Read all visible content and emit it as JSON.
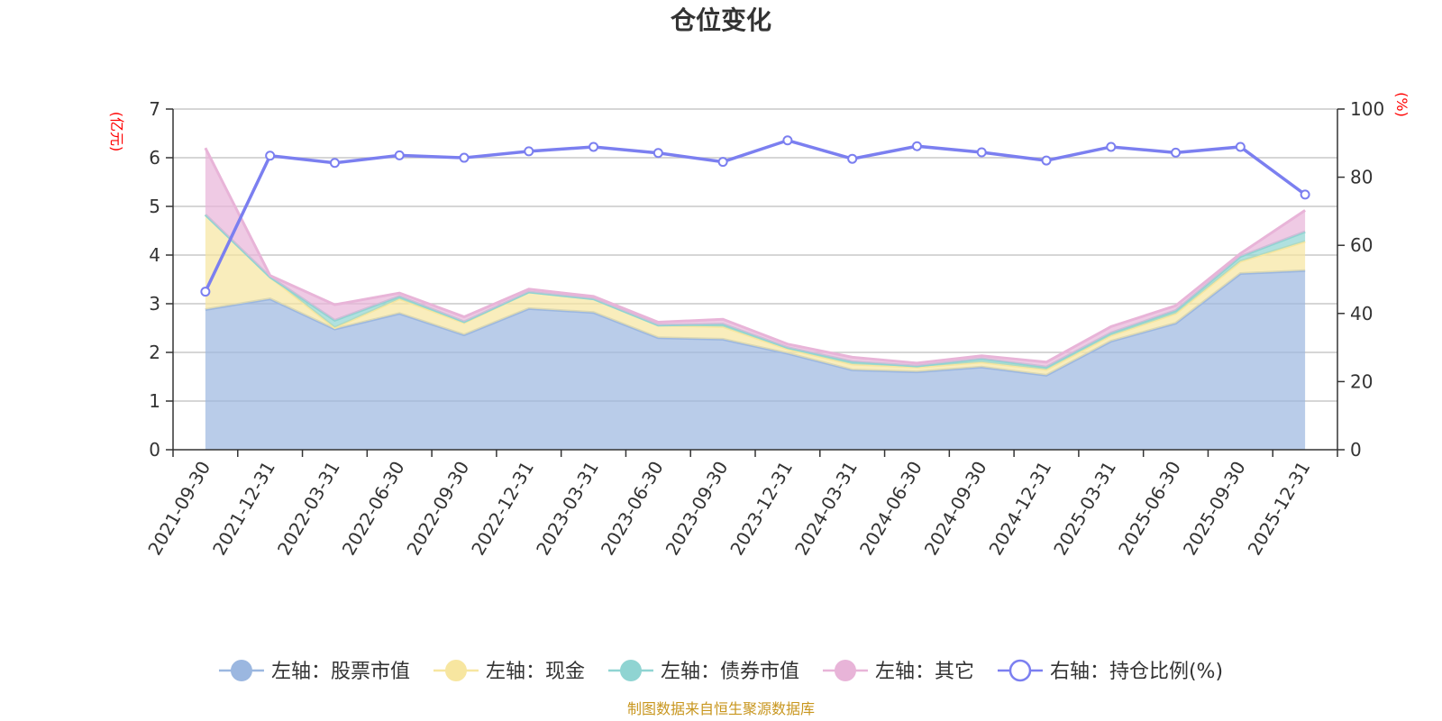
{
  "chart_data": {
    "type": "area",
    "title": "仓位变化",
    "left_axis_unit": "(亿元)",
    "right_axis_unit": "(%)",
    "left_ylim": [
      0,
      7
    ],
    "left_ticks": [
      "0",
      "1",
      "2",
      "3",
      "4",
      "5",
      "6",
      "7"
    ],
    "right_ylim": [
      0,
      100
    ],
    "right_ticks": [
      "0",
      "20",
      "40",
      "60",
      "80",
      "100"
    ],
    "categories": [
      "2021-09-30",
      "2021-12-31",
      "2022-03-31",
      "2022-06-30",
      "2022-09-30",
      "2022-12-31",
      "2023-03-31",
      "2023-06-30",
      "2023-09-30",
      "2023-12-31",
      "2024-03-31",
      "2024-06-30",
      "2024-09-30",
      "2024-12-31",
      "2025-03-31",
      "2025-06-30",
      "2025-09-30",
      "2025-12-31"
    ],
    "series": [
      {
        "name": "左轴：股票市值",
        "axis": "left",
        "stacked": true,
        "color": "#9bb7e0",
        "values": [
          2.88,
          3.1,
          2.48,
          2.8,
          2.36,
          2.9,
          2.82,
          2.3,
          2.27,
          1.98,
          1.64,
          1.6,
          1.7,
          1.53,
          2.23,
          2.6,
          3.62,
          3.68
        ]
      },
      {
        "name": "左轴：现金",
        "axis": "left",
        "stacked": true,
        "color": "#f7e6a0",
        "values": [
          1.95,
          0.45,
          0.03,
          0.3,
          0.25,
          0.34,
          0.28,
          0.26,
          0.26,
          0.09,
          0.12,
          0.1,
          0.1,
          0.12,
          0.12,
          0.2,
          0.25,
          0.6
        ]
      },
      {
        "name": "左轴：债券市值",
        "axis": "left",
        "stacked": true,
        "color": "#8fd4d2",
        "values": [
          0,
          0,
          0.15,
          0.05,
          0.02,
          0,
          0,
          0,
          0.05,
          0.03,
          0.05,
          0.02,
          0.07,
          0.05,
          0.05,
          0.06,
          0.1,
          0.2
        ]
      },
      {
        "name": "左轴：其它",
        "axis": "left",
        "stacked": true,
        "color": "#e8b4d8",
        "values": [
          1.37,
          0.03,
          0.32,
          0.07,
          0.1,
          0.06,
          0.05,
          0.06,
          0.1,
          0.07,
          0.09,
          0.06,
          0.06,
          0.1,
          0.13,
          0.1,
          0.06,
          0.44
        ]
      },
      {
        "name": "右轴：持仓比例(%)",
        "axis": "right",
        "stacked": false,
        "color": "#7b7ff0",
        "values": [
          46.4,
          86.3,
          84.2,
          86.4,
          85.7,
          87.6,
          88.9,
          87.1,
          84.5,
          90.8,
          85.4,
          89.1,
          87.3,
          84.9,
          88.9,
          87.2,
          88.9,
          74.9
        ]
      }
    ]
  },
  "legend": [
    {
      "label": "左轴：股票市值",
      "icon": "filled-circle",
      "color": "#9bb7e0"
    },
    {
      "label": "左轴：现金",
      "icon": "filled-circle",
      "color": "#f7e6a0"
    },
    {
      "label": "左轴：债券市值",
      "icon": "filled-circle",
      "color": "#8fd4d2"
    },
    {
      "label": "左轴：其它",
      "icon": "filled-circle",
      "color": "#e8b4d8"
    },
    {
      "label": "右轴：持仓比例(%)",
      "icon": "hollow-circle",
      "color": "#7b7ff0"
    }
  ],
  "source_text": "制图数据来自恒生聚源数据库"
}
